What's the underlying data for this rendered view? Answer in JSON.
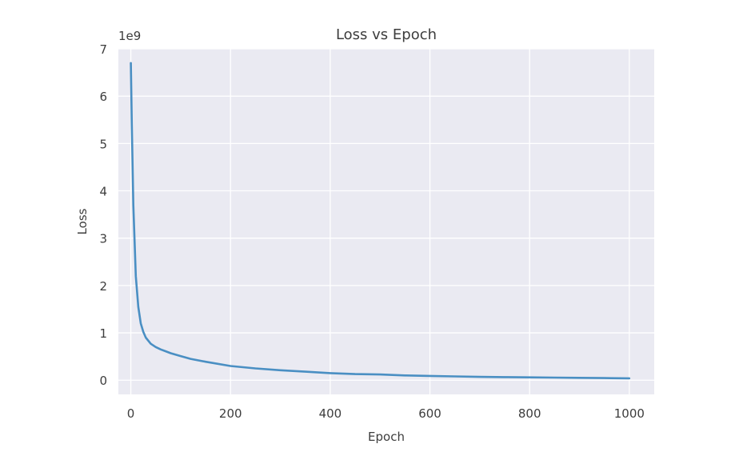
{
  "chart_data": {
    "type": "line",
    "title": "Loss vs Epoch",
    "xlabel": "Epoch",
    "ylabel": "Loss",
    "y_offset_label": "1e9",
    "xlim": [
      -25,
      1050
    ],
    "ylim": [
      -0.3,
      7
    ],
    "xticks": [
      0,
      200,
      400,
      600,
      800,
      1000
    ],
    "yticks": [
      0,
      1,
      2,
      3,
      4,
      5,
      6,
      7
    ],
    "grid": true,
    "legend": "none",
    "colors": {
      "line": "#4a8fc3",
      "background": "#eaeaf2",
      "grid": "#ffffff"
    },
    "series": [
      {
        "x": [
          0,
          2,
          5,
          10,
          15,
          20,
          25,
          30,
          40,
          50,
          60,
          70,
          80,
          100,
          120,
          150,
          200,
          250,
          300,
          350,
          400,
          450,
          500,
          550,
          600,
          650,
          700,
          750,
          800,
          850,
          900,
          950,
          1000
        ],
        "y": [
          6.7,
          5.4,
          3.7,
          2.2,
          1.55,
          1.2,
          1.02,
          0.9,
          0.77,
          0.7,
          0.65,
          0.61,
          0.57,
          0.51,
          0.45,
          0.39,
          0.3,
          0.25,
          0.21,
          0.18,
          0.15,
          0.13,
          0.12,
          0.1,
          0.09,
          0.08,
          0.07,
          0.065,
          0.06,
          0.055,
          0.05,
          0.045,
          0.04
        ]
      }
    ]
  }
}
